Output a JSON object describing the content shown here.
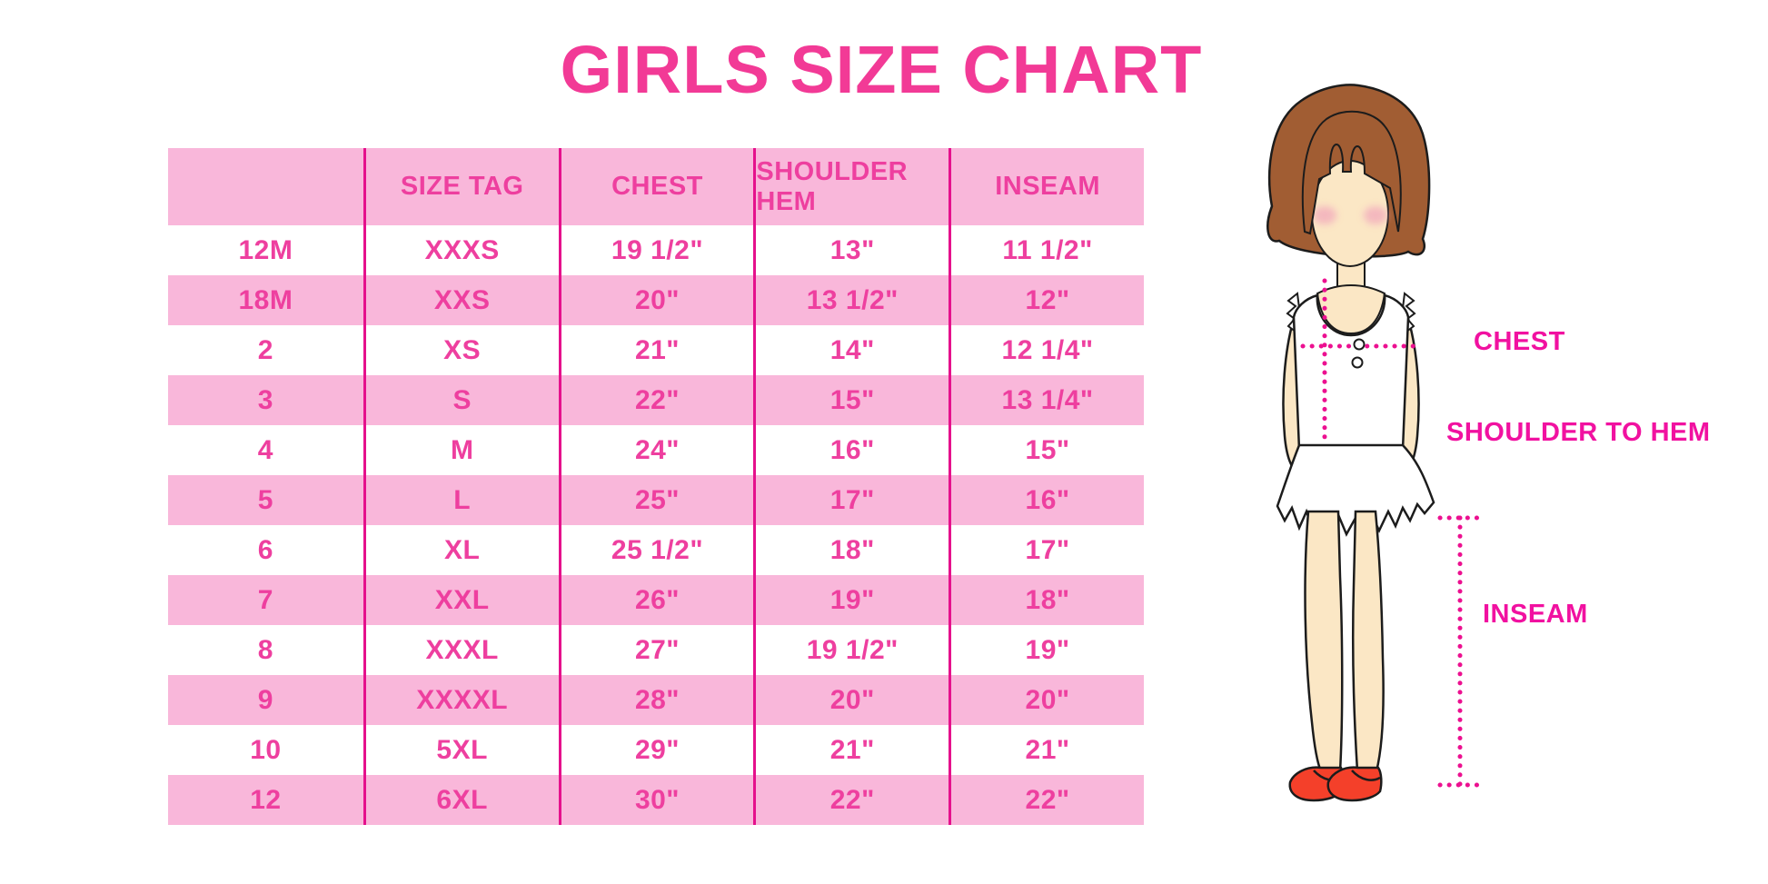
{
  "chart_data": {
    "type": "table",
    "title": "GIRLS SIZE CHART",
    "columns": [
      "",
      "SIZE TAG",
      "CHEST",
      "SHOULDER HEM",
      "INSEAM"
    ],
    "rows": [
      [
        "12M",
        "XXXS",
        "19 1/2\"",
        "13\"",
        "11 1/2\""
      ],
      [
        "18M",
        "XXS",
        "20\"",
        "13 1/2\"",
        "12\""
      ],
      [
        "2",
        "XS",
        "21\"",
        "14\"",
        "12 1/4\""
      ],
      [
        "3",
        "S",
        "22\"",
        "15\"",
        "13 1/4\""
      ],
      [
        "4",
        "M",
        "24\"",
        "16\"",
        "15\""
      ],
      [
        "5",
        "L",
        "25\"",
        "17\"",
        "16\""
      ],
      [
        "6",
        "XL",
        "25 1/2\"",
        "18\"",
        "17\""
      ],
      [
        "7",
        "XXL",
        "26\"",
        "19\"",
        "18\""
      ],
      [
        "8",
        "XXXL",
        "27\"",
        "19 1/2\"",
        "19\""
      ],
      [
        "9",
        "XXXXL",
        "28\"",
        "20\"",
        "20\""
      ],
      [
        "10",
        "5XL",
        "29\"",
        "21\"",
        "21\""
      ],
      [
        "12",
        "6XL",
        "30\"",
        "22\"",
        "22\""
      ]
    ],
    "legend_position": "none",
    "grid": "vertical-dividers-only"
  },
  "figure": {
    "labels": {
      "chest": "CHEST",
      "shoulder_to_hem": "SHOULDER TO HEM",
      "inseam": "INSEAM"
    }
  },
  "colors": {
    "title": "#F23A96",
    "row_pink": "#F9B7DA",
    "table_text": "#EE3F9F",
    "divider": "#E5118C",
    "label_text": "#F111A0",
    "dotted_line": "#EC1090",
    "hair": "#A15D33",
    "skin": "#FBE7C5",
    "blush": "#F2A9BC",
    "shoe": "#F4402A",
    "outline": "#1C1C1C"
  }
}
